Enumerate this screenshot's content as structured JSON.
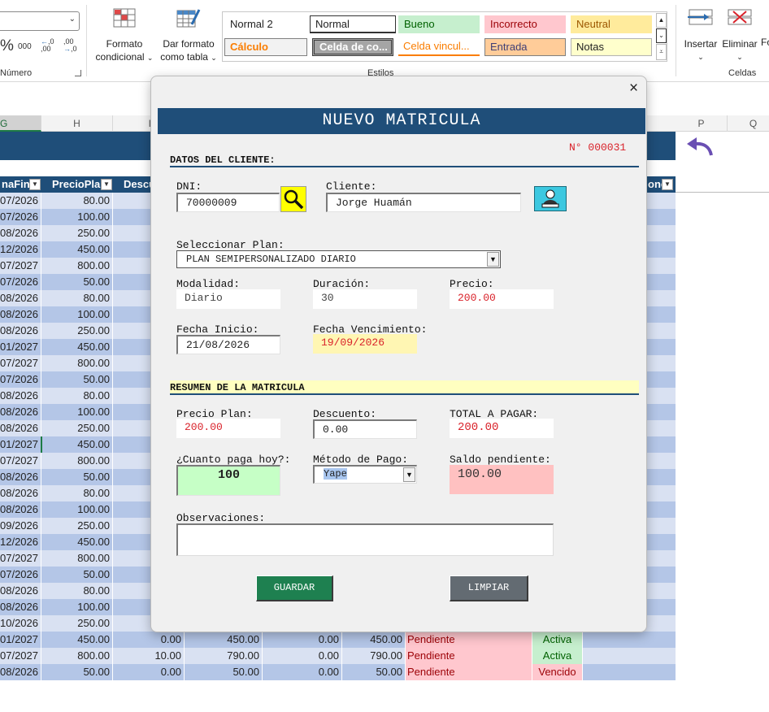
{
  "ribbon": {
    "number_group_label": "Número",
    "percent_symbol": "%",
    "thousands_label": "000",
    "decimal_increase_label": ",00",
    "decimal_decrease_label": ",0",
    "conditional_format_label1": "Formato",
    "conditional_format_label2": "condicional",
    "format_as_table_label1": "Dar formato",
    "format_as_table_label2": "como tabla",
    "styles_group_label": "Estilos",
    "styles": [
      {
        "name": "Normal 2",
        "bg": "#ffffff",
        "color": "#000000"
      },
      {
        "name": "Normal",
        "bg": "#ffffff",
        "color": "#000000"
      },
      {
        "name": "Bueno",
        "bg": "#c6efce",
        "color": "#006100"
      },
      {
        "name": "Incorrecto",
        "bg": "#ffc7ce",
        "color": "#9c0006"
      },
      {
        "name": "Neutral",
        "bg": "#ffeb9c",
        "color": "#9c5700"
      },
      {
        "name": "Cálculo",
        "bg": "#f2f2f2",
        "color": "#fa7d00"
      },
      {
        "name": "Celda de co...",
        "bg": "#a5a5a5",
        "color": "#ffffff"
      },
      {
        "name": "Celda vincul...",
        "bg": "#ffffff",
        "color": "#fa7d00"
      },
      {
        "name": "Entrada",
        "bg": "#ffcc99",
        "color": "#3f3f76"
      },
      {
        "name": "Notas",
        "bg": "#ffffcc",
        "color": "#000000"
      }
    ],
    "insert_label": "Insertar",
    "delete_label": "Eliminar",
    "format_cut_label": "Fo",
    "cells_group_label": "Celdas"
  },
  "sheet": {
    "columns": [
      "G",
      "H",
      "I",
      "P",
      "Q"
    ],
    "headers": [
      "naFin",
      "PrecioPla",
      "Descu",
      "one"
    ],
    "rows": [
      {
        "fin": "07/2026",
        "precio": "80.00"
      },
      {
        "fin": "07/2026",
        "precio": "100.00"
      },
      {
        "fin": "08/2026",
        "precio": "250.00"
      },
      {
        "fin": "12/2026",
        "precio": "450.00"
      },
      {
        "fin": "07/2027",
        "precio": "800.00"
      },
      {
        "fin": "07/2026",
        "precio": "50.00"
      },
      {
        "fin": "08/2026",
        "precio": "80.00"
      },
      {
        "fin": "08/2026",
        "precio": "100.00"
      },
      {
        "fin": "08/2026",
        "precio": "250.00"
      },
      {
        "fin": "01/2027",
        "precio": "450.00"
      },
      {
        "fin": "07/2027",
        "precio": "800.00"
      },
      {
        "fin": "07/2026",
        "precio": "50.00"
      },
      {
        "fin": "08/2026",
        "precio": "80.00"
      },
      {
        "fin": "08/2026",
        "precio": "100.00"
      },
      {
        "fin": "08/2026",
        "precio": "250.00"
      },
      {
        "fin": "01/2027",
        "precio": "450.00"
      },
      {
        "fin": "07/2027",
        "precio": "800.00"
      },
      {
        "fin": "08/2026",
        "precio": "50.00"
      },
      {
        "fin": "08/2026",
        "precio": "80.00"
      },
      {
        "fin": "08/2026",
        "precio": "100.00"
      },
      {
        "fin": "09/2026",
        "precio": "250.00"
      },
      {
        "fin": "12/2026",
        "precio": "450.00"
      },
      {
        "fin": "07/2027",
        "precio": "800.00"
      },
      {
        "fin": "07/2026",
        "precio": "50.00"
      },
      {
        "fin": "08/2026",
        "precio": "80.00"
      },
      {
        "fin": "08/2026",
        "precio": "100.00"
      },
      {
        "fin": "10/2026",
        "precio": "250.00"
      },
      {
        "fin": "01/2027",
        "precio": "450.00",
        "descuento": "0.00",
        "subtotal": "450.00",
        "pagado": "0.00",
        "saldo": "450.00",
        "estado_pago": "Pendiente",
        "estado": "Activa"
      },
      {
        "fin": "07/2027",
        "precio": "800.00",
        "descuento": "10.00",
        "subtotal": "790.00",
        "pagado": "0.00",
        "saldo": "790.00",
        "estado_pago": "Pendiente",
        "estado": "Activa"
      },
      {
        "fin": "08/2026",
        "precio": "50.00",
        "descuento": "0.00",
        "subtotal": "50.00",
        "pagado": "0.00",
        "saldo": "50.00",
        "estado_pago": "Pendiente",
        "estado": "Vencido"
      }
    ]
  },
  "dialog": {
    "close_label": "×",
    "title": "NUEVO MATRICULA",
    "number": "N° 000031",
    "section_client": "DATOS DEL CLIENTE:",
    "dni_label": "DNI:",
    "dni_value": "70000009",
    "client_label": "Cliente:",
    "client_value": "Jorge Huamán",
    "plan_label": "Seleccionar Plan:",
    "plan_value": "PLAN SEMIPERSONALIZADO DIARIO",
    "modalidad_label": "Modalidad:",
    "modalidad_value": "Diario",
    "duracion_label": "Duración:",
    "duracion_value": "30",
    "precio_label": "Precio:",
    "precio_value": "200.00",
    "fecha_inicio_label": "Fecha Inicio:",
    "fecha_inicio_value": "21/08/2026",
    "fecha_venc_label": "Fecha Vencimiento:",
    "fecha_venc_value": "19/09/2026",
    "section_summary": "RESUMEN DE LA MATRICULA",
    "precio_plan_label": "Precio Plan:",
    "precio_plan_value": "200.00",
    "descuento_label": "Descuento:",
    "descuento_value": "0.00",
    "total_label": "TOTAL A PAGAR:",
    "total_value": "200.00",
    "paga_hoy_label": "¿Cuanto paga hoy?:",
    "paga_hoy_value": "100",
    "metodo_label": "Método de Pago:",
    "metodo_value": "Yape",
    "saldo_label": "Saldo pendiente:",
    "saldo_value": "100.00",
    "observaciones_label": "Observaciones:",
    "observaciones_value": "",
    "guardar_label": "GUARDAR",
    "limpiar_label": "LIMPIAR"
  },
  "colors": {
    "title_bar": "#1f4e79",
    "guardar": "#1e8050",
    "limpiar": "#636b72",
    "paid_today_bg": "#c6ffc6",
    "balance_bg": "#ffc1c1",
    "due_date_bg": "#fff6b3",
    "summary_band_bg": "#ffffc0"
  }
}
